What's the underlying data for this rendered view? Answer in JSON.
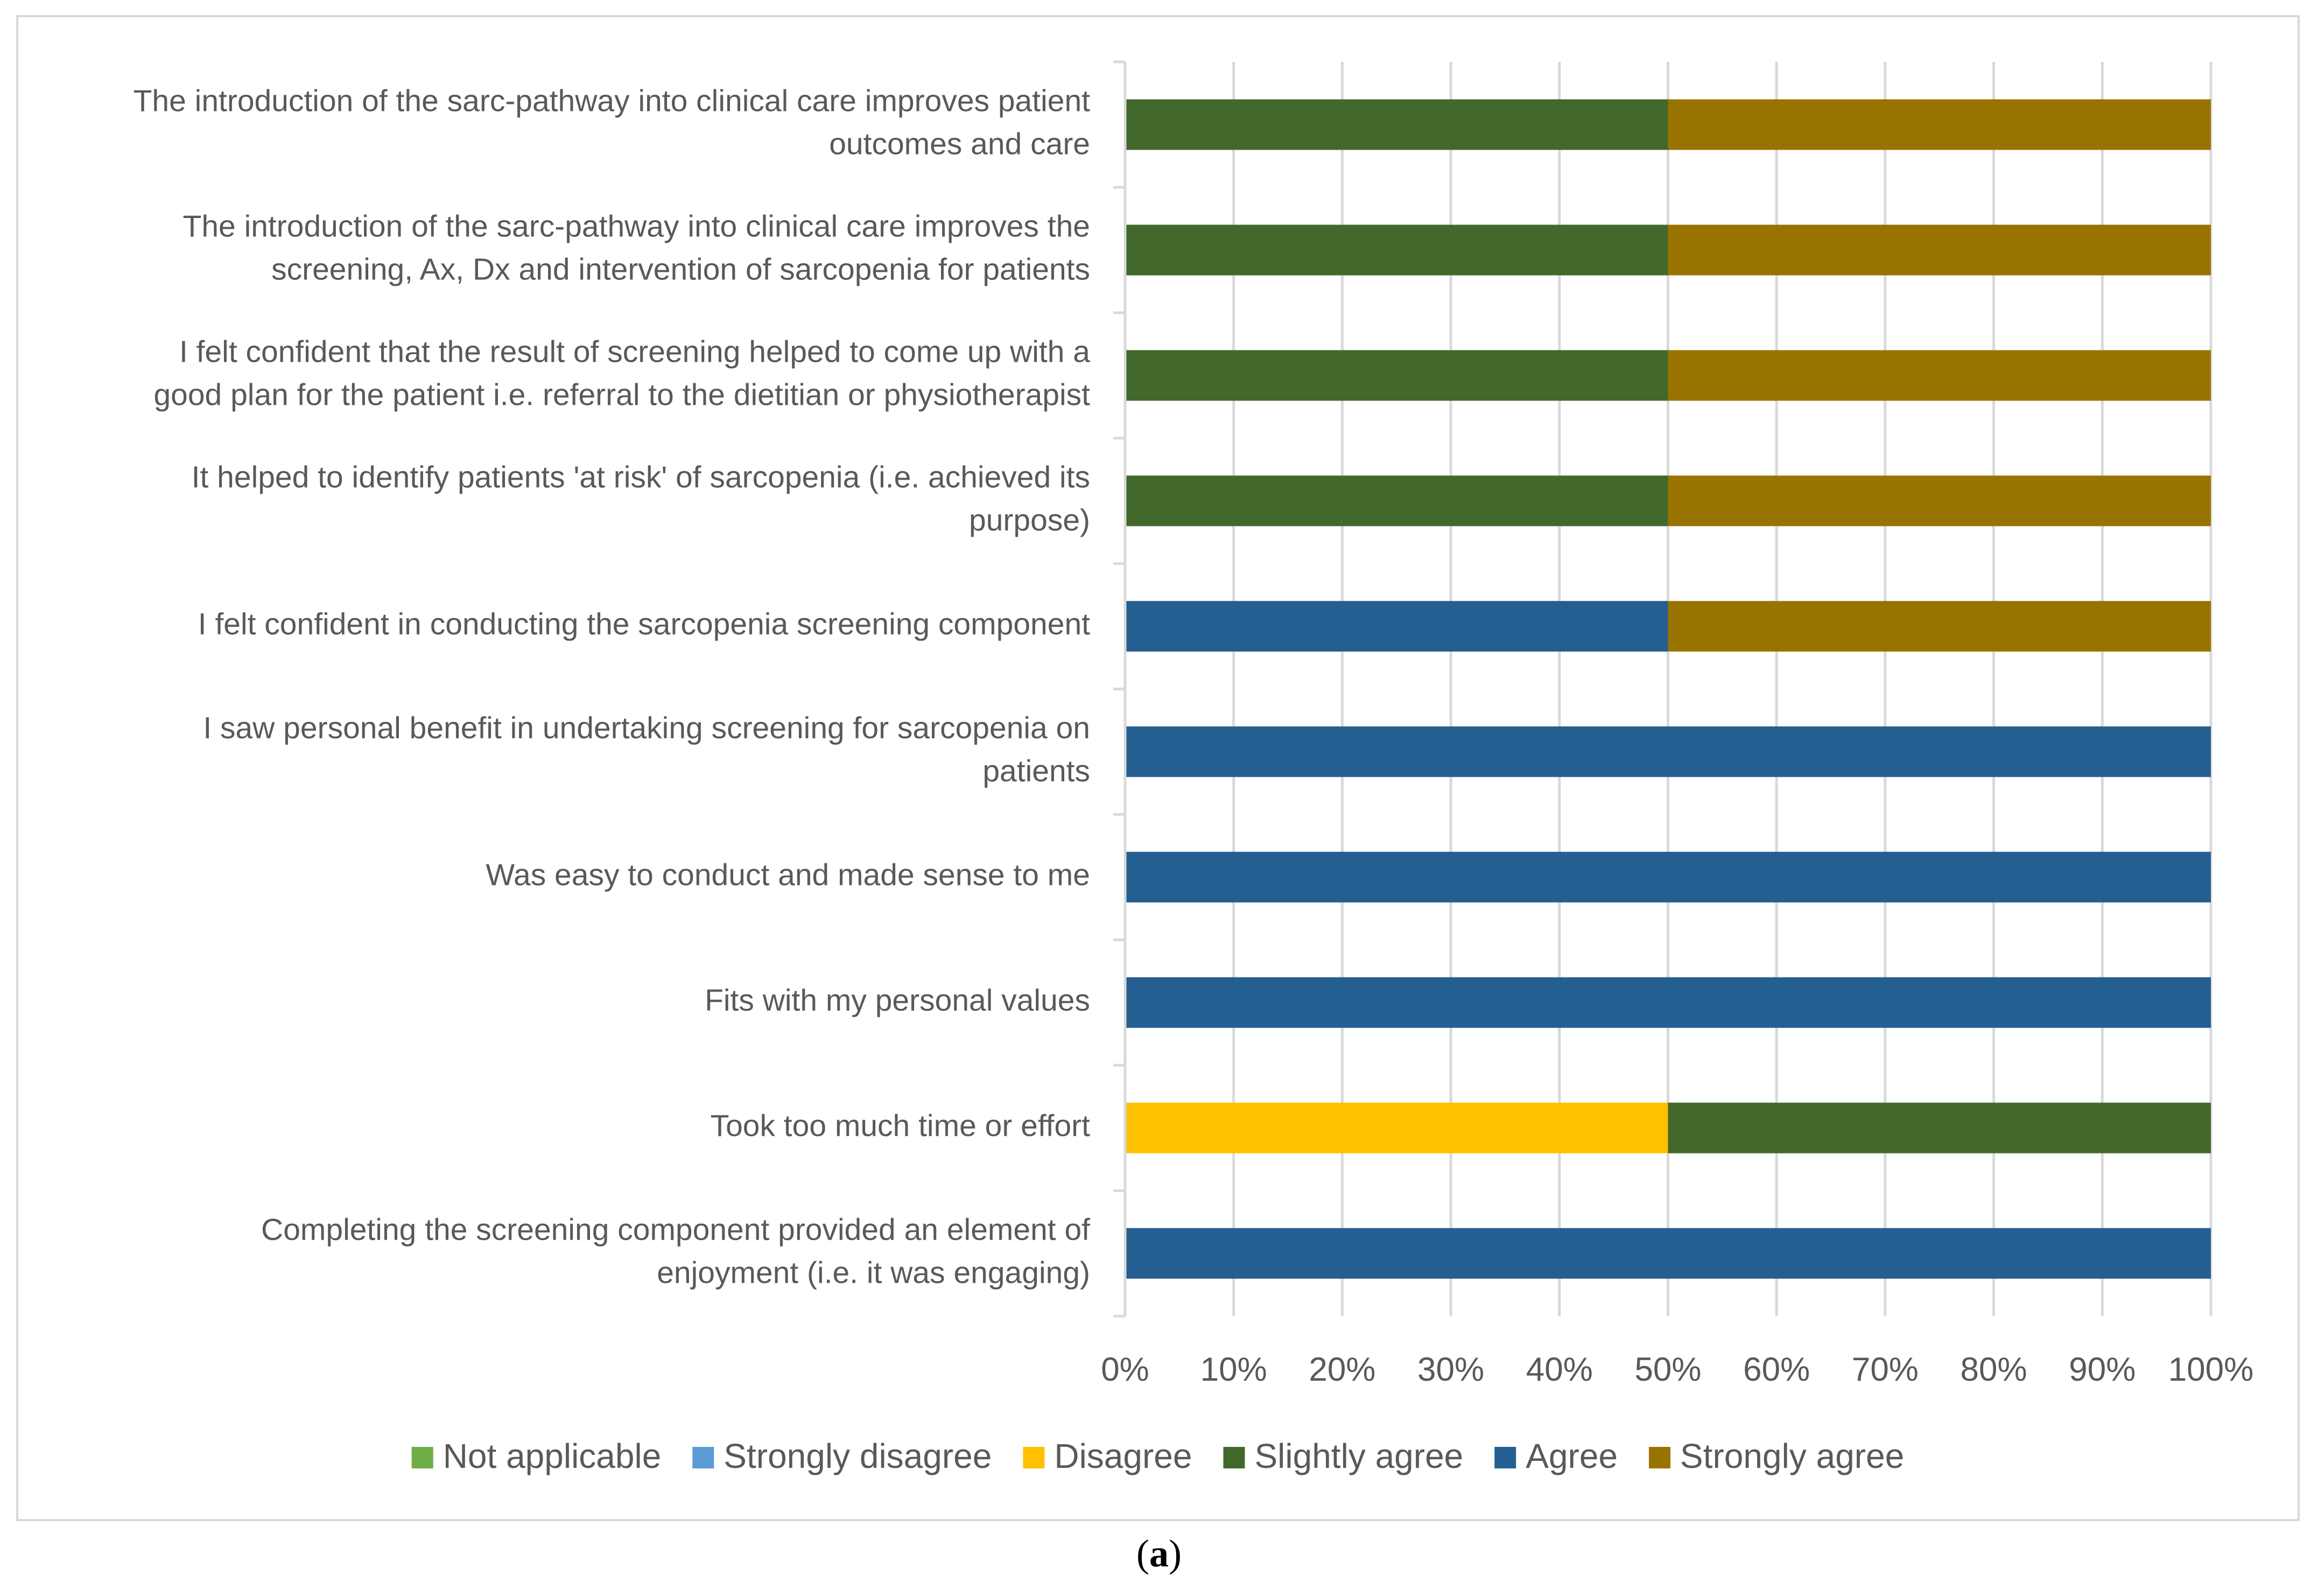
{
  "chart_data": {
    "type": "bar",
    "orientation": "horizontal",
    "stacking": "percent",
    "categories": [
      [
        "The introduction of the sarc-pathway into clinical care improves patient",
        "outcomes and care"
      ],
      [
        "The introduction of the sarc-pathway into clinical care improves the",
        "screening, Ax, Dx and intervention of sarcopenia for patients"
      ],
      [
        "I felt confident that the result of screening helped to come up with a",
        "good plan for the patient i.e. referral to the dietitian or physiotherapist"
      ],
      [
        "It helped to identify patients 'at risk' of sarcopenia (i.e. achieved its",
        "purpose)"
      ],
      [
        "I felt confident in conducting the sarcopenia screening component"
      ],
      [
        "I saw personal benefit in undertaking screening for sarcopenia on",
        "patients"
      ],
      [
        "Was easy to conduct and made sense to me"
      ],
      [
        "Fits with my personal values"
      ],
      [
        "Took too much time or effort"
      ],
      [
        "Completing the screening component provided an element of",
        "enjoyment (i.e. it was engaging)"
      ]
    ],
    "series": [
      {
        "name": "Not applicable",
        "color": "#70ad47",
        "values": [
          0,
          0,
          0,
          0,
          0,
          0,
          0,
          0,
          0,
          0
        ]
      },
      {
        "name": "Strongly disagree",
        "color": "#5b9bd5",
        "values": [
          0,
          0,
          0,
          0,
          0,
          0,
          0,
          0,
          0,
          0
        ]
      },
      {
        "name": "Disagree",
        "color": "#ffc000",
        "values": [
          0,
          0,
          0,
          0,
          0,
          0,
          0,
          0,
          50,
          0
        ]
      },
      {
        "name": "Slightly agree",
        "color": "#43682b",
        "values": [
          50,
          50,
          50,
          50,
          0,
          0,
          0,
          0,
          50,
          0
        ]
      },
      {
        "name": "Agree",
        "color": "#255e91",
        "values": [
          0,
          0,
          0,
          0,
          50,
          100,
          100,
          100,
          0,
          100
        ]
      },
      {
        "name": "Strongly agree",
        "color": "#997300",
        "values": [
          50,
          50,
          50,
          50,
          50,
          0,
          0,
          0,
          0,
          0
        ]
      }
    ],
    "xlim": [
      0,
      100
    ],
    "xticks": [
      "0%",
      "10%",
      "20%",
      "30%",
      "40%",
      "50%",
      "60%",
      "70%",
      "80%",
      "90%",
      "100%"
    ],
    "grid": true,
    "legend": "bottom",
    "title": "",
    "xlabel": "",
    "ylabel": ""
  },
  "caption": {
    "open": "(",
    "letter": "a",
    "close": ")"
  }
}
